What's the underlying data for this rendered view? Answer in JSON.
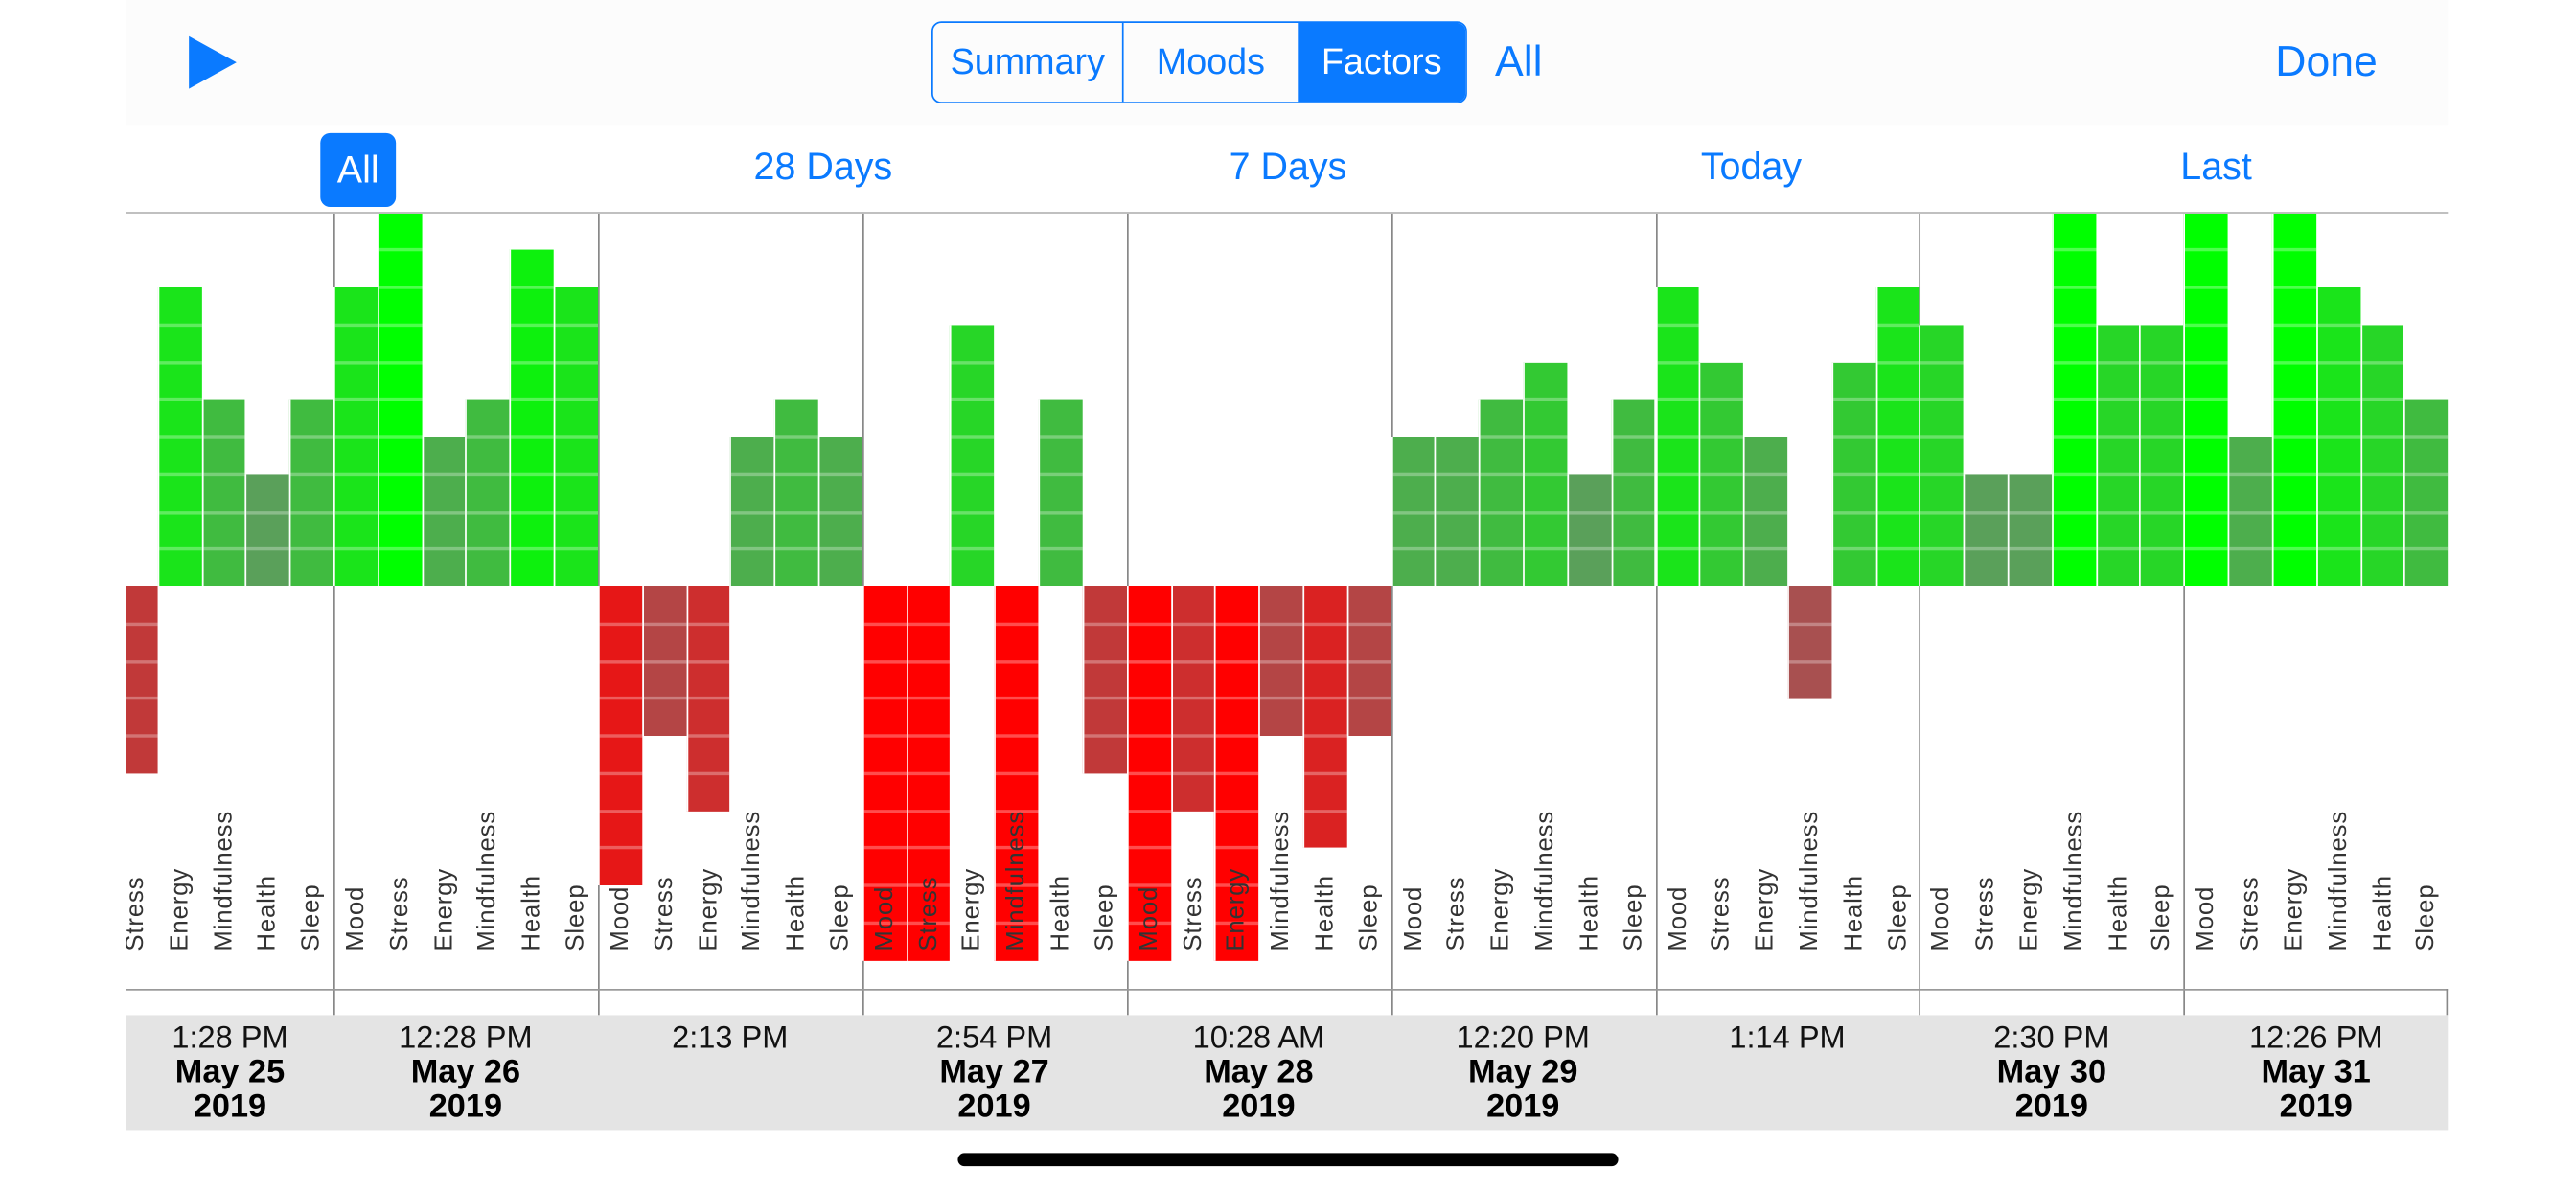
{
  "header": {
    "play_icon": "play-triangle-icon",
    "tabs": [
      {
        "label": "Summary",
        "selected": false
      },
      {
        "label": "Moods",
        "selected": false
      },
      {
        "label": "Factors",
        "selected": true
      }
    ],
    "all_label": "All",
    "done_label": "Done"
  },
  "ranges": [
    {
      "label": "All",
      "selected": true
    },
    {
      "label": "28 Days",
      "selected": false
    },
    {
      "label": "7 Days",
      "selected": false
    },
    {
      "label": "Today",
      "selected": false
    },
    {
      "label": "Last",
      "selected": false
    }
  ],
  "colors": {
    "accent": "#0a7aff",
    "positive_max": "#00ff00",
    "negative_max": "#ff0000",
    "band": "#e4e4e4"
  },
  "chart_data": {
    "type": "bar",
    "factors": [
      "Mood",
      "Stress",
      "Energy",
      "Mindfulness",
      "Health",
      "Sleep"
    ],
    "ylim": [
      -10,
      10
    ],
    "entries": [
      {
        "time": "1:28 PM",
        "date": "May 25",
        "year": "2019",
        "values": [
          null,
          -5,
          8,
          5,
          3,
          5
        ]
      },
      {
        "time": "12:28 PM",
        "date": "May 26",
        "year": "2019",
        "values": [
          8,
          10,
          4,
          5,
          9,
          8
        ]
      },
      {
        "time": "2:13 PM",
        "date": "",
        "year": "",
        "values": [
          -8,
          -4,
          -6,
          4,
          5,
          4
        ]
      },
      {
        "time": "2:54 PM",
        "date": "May 27",
        "year": "2019",
        "values": [
          -10,
          -10,
          7,
          -10,
          5,
          -5
        ]
      },
      {
        "time": "10:28 AM",
        "date": "May 28",
        "year": "2019",
        "values": [
          -10,
          -6,
          -10,
          -4,
          -7,
          -4
        ]
      },
      {
        "time": "12:20 PM",
        "date": "May 29",
        "year": "2019",
        "values": [
          4,
          4,
          5,
          6,
          3,
          5
        ]
      },
      {
        "time": "1:14 PM",
        "date": "",
        "year": "",
        "values": [
          8,
          6,
          4,
          -3,
          6,
          8
        ]
      },
      {
        "time": "2:30 PM",
        "date": "May 30",
        "year": "2019",
        "values": [
          7,
          3,
          3,
          10,
          7,
          7
        ]
      },
      {
        "time": "12:26 PM",
        "date": "May 31",
        "year": "2019",
        "values": [
          10,
          4,
          10,
          8,
          7,
          5
        ]
      }
    ]
  }
}
